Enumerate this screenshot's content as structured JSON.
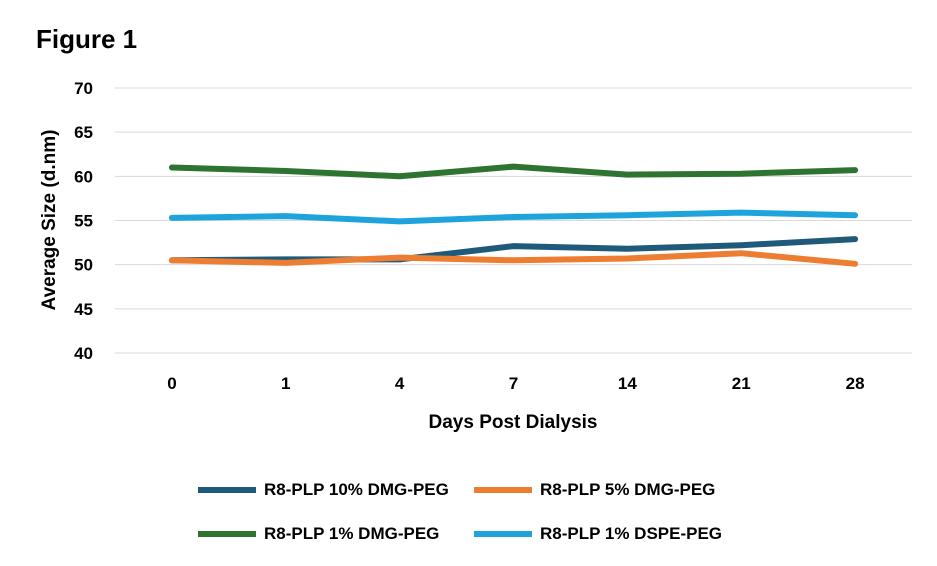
{
  "figure_title": "Figure 1",
  "chart_data": {
    "type": "line",
    "title": "",
    "xlabel": "Days Post Dialysis",
    "ylabel": "Average Size (d.nm)",
    "categories": [
      "0",
      "1",
      "4",
      "7",
      "14",
      "21",
      "28"
    ],
    "ylim": [
      40,
      70
    ],
    "yticks": [
      40,
      45,
      50,
      55,
      60,
      65,
      70
    ],
    "grid": true,
    "legend_position": "bottom",
    "series": [
      {
        "name": "R8-PLP 10% DMG-PEG",
        "color": "#1f5a7a",
        "values": [
          50.5,
          50.6,
          50.6,
          52.1,
          51.8,
          52.2,
          52.9
        ]
      },
      {
        "name": "R8-PLP 5% DMG-PEG",
        "color": "#ed7d31",
        "values": [
          50.5,
          50.2,
          50.8,
          50.5,
          50.7,
          51.3,
          50.1
        ]
      },
      {
        "name": "R8-PLP 1% DMG-PEG",
        "color": "#2e7430",
        "values": [
          61.0,
          60.6,
          60.0,
          61.1,
          60.2,
          60.3,
          60.7
        ]
      },
      {
        "name": "R8-PLP 1% DSPE-PEG",
        "color": "#1fa3dc",
        "values": [
          55.3,
          55.5,
          54.9,
          55.4,
          55.6,
          55.9,
          55.6
        ]
      }
    ]
  }
}
